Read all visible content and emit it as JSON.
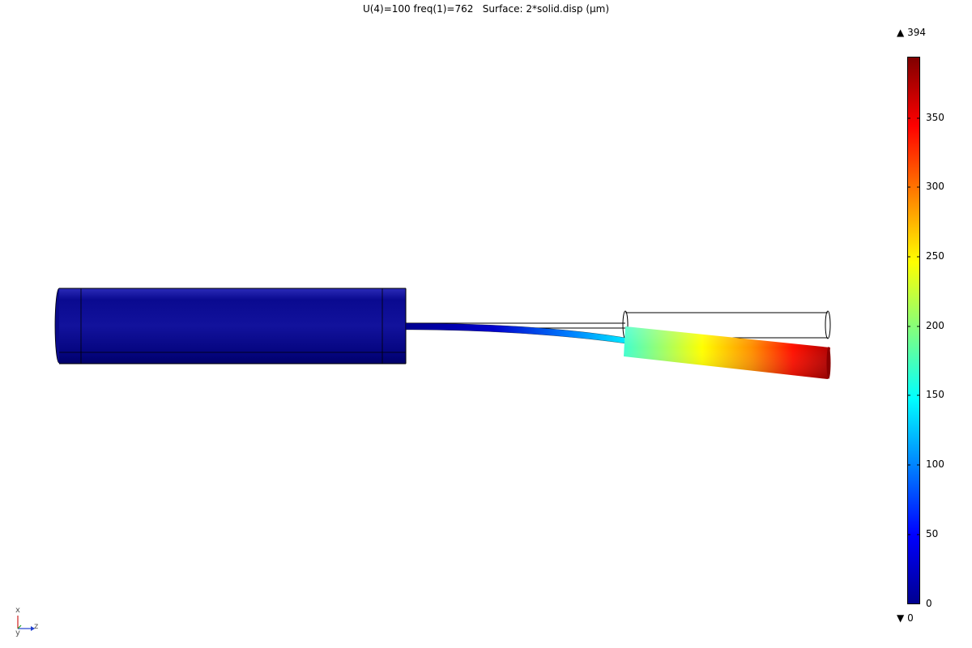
{
  "plot": {
    "title": "U(4)=100 freq(1)=762   Surface: 2*solid.disp (µm)"
  },
  "colorbar": {
    "max_label": "394",
    "min_label": "0",
    "max_marker": "▲",
    "min_marker": "▼",
    "ticks": [
      "350",
      "300",
      "250",
      "200",
      "150",
      "100",
      "50",
      "0"
    ],
    "colormap": "rainbow",
    "colors": [
      "#00008f",
      "#0000ff",
      "#0080ff",
      "#00ffff",
      "#80ff80",
      "#ffff00",
      "#ff8000",
      "#ff0000",
      "#800000"
    ]
  },
  "axes": {
    "x_label": "x",
    "y_label": "y",
    "z_label": "z"
  }
}
